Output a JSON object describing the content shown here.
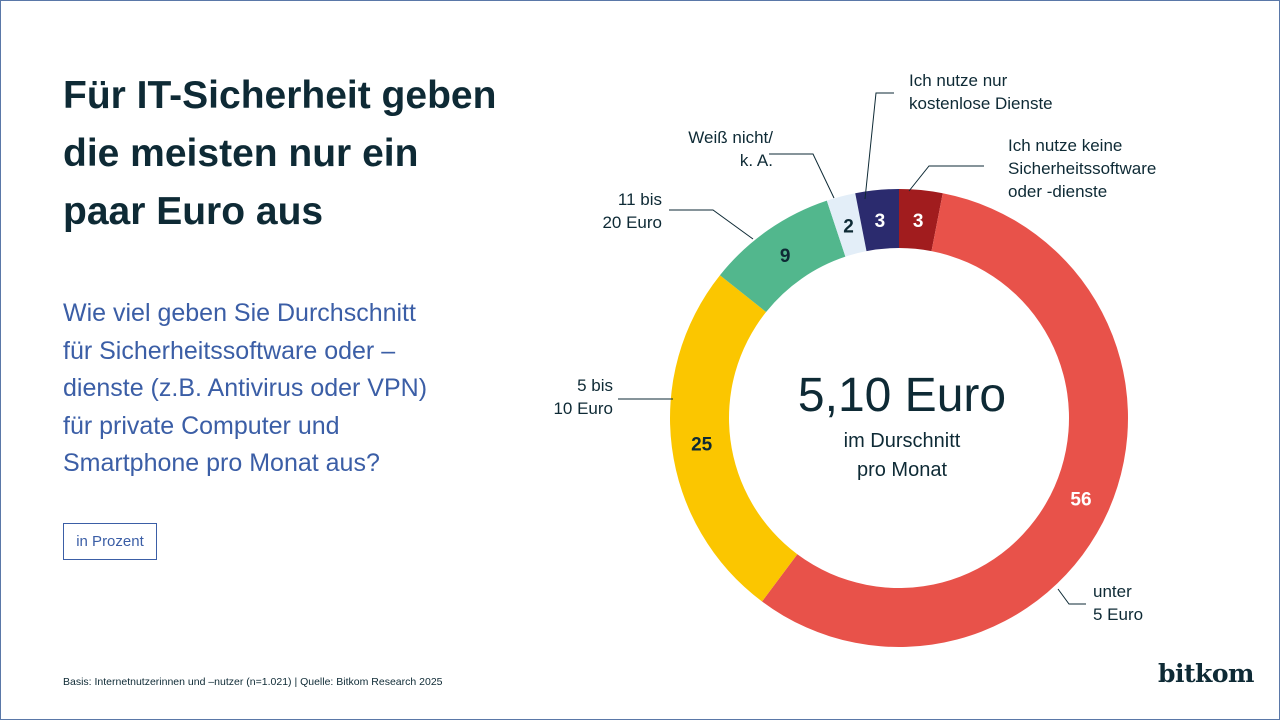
{
  "title_lines": [
    "Für IT-Sicherheit geben",
    "die meisten nur ein",
    "paar Euro aus"
  ],
  "subtitle_lines": [
    "Wie viel geben Sie Durchschnitt",
    "für Sicherheitssoftware oder –",
    "dienste (z.B. Antivirus oder VPN)",
    "für private Computer und",
    "Smartphone pro Monat aus?"
  ],
  "unit_label": "in Prozent",
  "footer": "Basis: Internetnutzerinnen und –nutzer  (n=1.021) | Quelle: Bitkom Research 2025",
  "logo": "bitkom",
  "chart_data": {
    "type": "pie",
    "donut": true,
    "unit": "in Prozent",
    "center_value": "5,10 Euro",
    "center_lines": [
      "im Durschnitt",
      "pro Monat"
    ],
    "start": "top",
    "direction": "clockwise",
    "slices": [
      {
        "label_lines": [
          "Ich nutze keine",
          "Sicherheitssoftware",
          "oder -dienste"
        ],
        "value": 3,
        "color": "#a11c1e",
        "text_color": "#ffffff"
      },
      {
        "label_lines": [
          "unter",
          "5 Euro"
        ],
        "value": 56,
        "color": "#e8524a",
        "text_color": "#ffffff"
      },
      {
        "label_lines": [
          "5 bis",
          "10 Euro"
        ],
        "value": 25,
        "color": "#fbc600",
        "text_color": "#0e2a35"
      },
      {
        "label_lines": [
          "11 bis",
          "20 Euro"
        ],
        "value": 9,
        "color": "#52b78d",
        "text_color": "#0e2a35"
      },
      {
        "label_lines": [
          "Weiß nicht/",
          "k. A."
        ],
        "value": 2,
        "color": "#e3eef8",
        "text_color": "#0e2a35"
      },
      {
        "label_lines": [
          "Ich nutze nur",
          "kostenlose Dienste"
        ],
        "value": 3,
        "color": "#2b2b6e",
        "text_color": "#ffffff"
      }
    ]
  }
}
